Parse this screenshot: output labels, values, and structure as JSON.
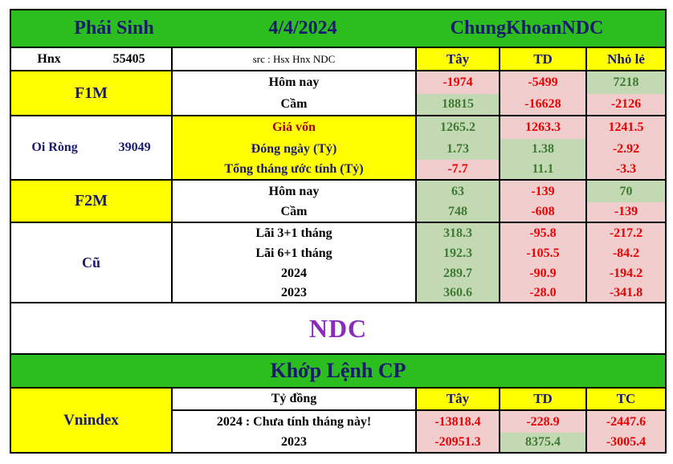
{
  "colors": {
    "green-header": "#2CBE1E",
    "yellow": "#FFFF00",
    "pink-bg": "#F2CDCD",
    "green-bg": "#C3D9B3",
    "navy": "#1A1A70",
    "red-value": "#EE0000",
    "green-value": "#3F7A33",
    "maroon": "#A50000",
    "purple": "#8A2BBE"
  },
  "header": {
    "title": "Phái Sinh",
    "date": "4/4/2024",
    "brand": "ChungKhoanNDC"
  },
  "info": {
    "exchange": "Hnx",
    "exchange_value": "55405",
    "source": "src : Hsx Hnx NDC",
    "col1": "Tây",
    "col2": "TD",
    "col3": "Nhỏ lẻ"
  },
  "f1m": {
    "label": "F1M",
    "rows": [
      {
        "label": "Hôm nay",
        "values": [
          "-1974",
          "-5499",
          "7218"
        ]
      },
      {
        "label": "Cầm",
        "values": [
          "18815",
          "-16628",
          "-2126"
        ]
      }
    ]
  },
  "oi_rong": {
    "label": "Oi Ròng",
    "value": "39049",
    "rows": [
      {
        "label": "Giá vốn",
        "values": [
          "1265.2",
          "1263.3",
          "1241.5"
        ]
      },
      {
        "label": "Đóng ngày (Tỷ)",
        "values": [
          "1.73",
          "1.38",
          "-2.92"
        ]
      },
      {
        "label": "Tổng tháng ước tính (Tỷ)",
        "values": [
          "-7.7",
          "11.1",
          "-3.3"
        ]
      }
    ]
  },
  "f2m": {
    "label": "F2M",
    "rows": [
      {
        "label": "Hôm nay",
        "values": [
          "63",
          "-139",
          "70"
        ]
      },
      {
        "label": "Cầm",
        "values": [
          "748",
          "-608",
          "-139"
        ]
      }
    ]
  },
  "cu": {
    "label": "Cũ",
    "rows": [
      {
        "label": "Lãi 3+1 tháng",
        "values": [
          "318.3",
          "-95.8",
          "-217.2"
        ]
      },
      {
        "label": "Lãi 6+1 tháng",
        "values": [
          "192.3",
          "-105.5",
          "-84.2"
        ]
      },
      {
        "label": "2024",
        "values": [
          "289.7",
          "-90.9",
          "-194.2"
        ]
      },
      {
        "label": "2023",
        "values": [
          "360.6",
          "-28.0",
          "-341.8"
        ]
      }
    ]
  },
  "ndc": "NDC",
  "khop_lenh": "Khớp Lệnh CP",
  "vnindex": {
    "label": "Vnindex",
    "unit": "Tỷ đồng",
    "col1": "Tây",
    "col2": "TD",
    "col3": "TC",
    "rows": [
      {
        "label": "2024 : Chưa tính tháng này!",
        "values": [
          "-13818.4",
          "-228.9",
          "-2447.6"
        ]
      },
      {
        "label": "2023",
        "values": [
          "-20951.3",
          "8375.4",
          "-3005.4"
        ]
      }
    ]
  }
}
